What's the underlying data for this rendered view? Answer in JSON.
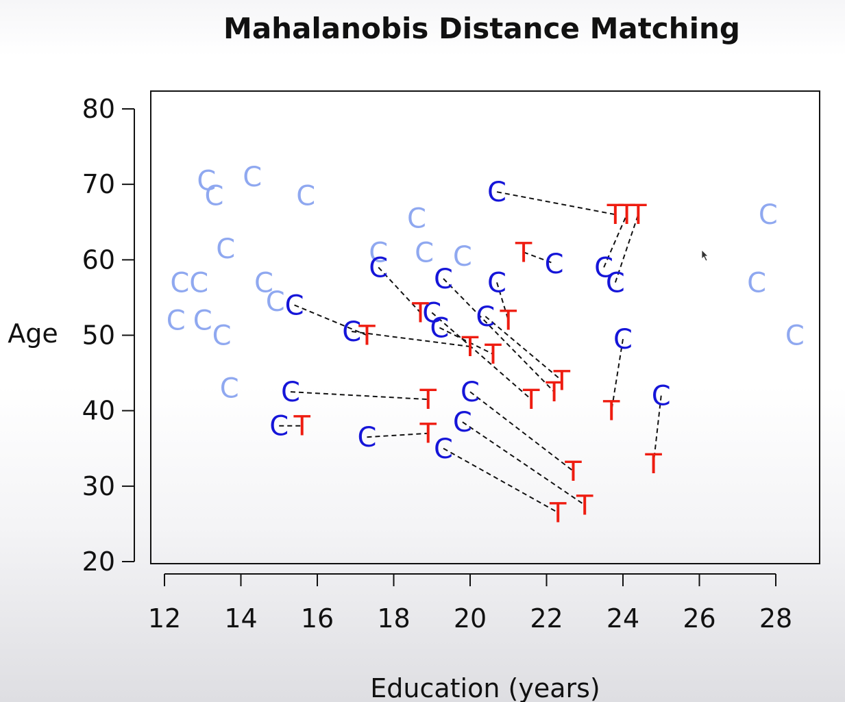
{
  "chart_data": {
    "type": "scatter",
    "title": "Mahalanobis Distance Matching",
    "xlabel": "Education (years)",
    "ylabel": "Age",
    "xlim": [
      11.8,
      29.2
    ],
    "ylim": [
      20,
      81
    ],
    "xticks": [
      12,
      14,
      16,
      18,
      20,
      22,
      24,
      26,
      28
    ],
    "yticks": [
      20,
      30,
      40,
      50,
      60,
      70,
      80
    ],
    "grid": false,
    "colors": {
      "unmatched_control": "#8fa8f0",
      "matched_control": "#1515d8",
      "treated": "#ee1c10",
      "match_line": "#111111"
    },
    "series": [
      {
        "name": "",
        "marker": "C",
        "role": "unmatched_control",
        "points": [
          [
            13.1,
            70.5
          ],
          [
            13.3,
            68.5
          ],
          [
            14.3,
            71
          ],
          [
            15.7,
            68.5
          ],
          [
            13.6,
            61.5
          ],
          [
            12.4,
            57
          ],
          [
            12.9,
            57
          ],
          [
            14.6,
            57
          ],
          [
            14.9,
            54.5
          ],
          [
            12.3,
            52
          ],
          [
            13.0,
            52
          ],
          [
            13.5,
            50
          ],
          [
            13.7,
            43
          ],
          [
            18.6,
            65.5
          ],
          [
            17.6,
            61
          ],
          [
            18.8,
            61
          ],
          [
            19.8,
            60.5
          ],
          [
            27.8,
            66
          ],
          [
            27.5,
            57
          ],
          [
            28.5,
            50
          ]
        ]
      },
      {
        "name": "",
        "marker": "C",
        "role": "matched_control",
        "points": [
          [
            20.7,
            69
          ],
          [
            22.2,
            59.5
          ],
          [
            23.5,
            59
          ],
          [
            23.8,
            57
          ],
          [
            24.0,
            49.5
          ],
          [
            25.0,
            42
          ],
          [
            20.7,
            57
          ],
          [
            19.3,
            57.5
          ],
          [
            20.4,
            52.5
          ],
          [
            19.0,
            53
          ],
          [
            19.2,
            51
          ],
          [
            17.6,
            59
          ],
          [
            15.4,
            54
          ],
          [
            16.9,
            50.5
          ],
          [
            15.3,
            42.5
          ],
          [
            15.0,
            38
          ],
          [
            17.3,
            36.5
          ],
          [
            20.0,
            42.5
          ],
          [
            19.8,
            38.5
          ],
          [
            19.3,
            35
          ]
        ]
      },
      {
        "name": "",
        "marker": "T",
        "role": "treated",
        "points": [
          [
            23.8,
            66
          ],
          [
            24.1,
            66
          ],
          [
            24.4,
            66
          ],
          [
            21.4,
            61
          ],
          [
            18.7,
            53
          ],
          [
            21.0,
            52
          ],
          [
            17.3,
            50
          ],
          [
            20.0,
            48.5
          ],
          [
            20.6,
            47.5
          ],
          [
            22.4,
            44
          ],
          [
            22.2,
            42.5
          ],
          [
            21.6,
            41.5
          ],
          [
            18.9,
            41.5
          ],
          [
            23.7,
            40
          ],
          [
            15.6,
            38
          ],
          [
            18.9,
            37
          ],
          [
            24.8,
            33
          ],
          [
            22.7,
            32
          ],
          [
            23.0,
            27.5
          ],
          [
            22.3,
            26.5
          ]
        ]
      }
    ],
    "matches": [
      [
        [
          20.7,
          69
        ],
        [
          23.8,
          66
        ]
      ],
      [
        [
          23.5,
          59
        ],
        [
          24.1,
          66
        ]
      ],
      [
        [
          23.8,
          57
        ],
        [
          24.4,
          66
        ]
      ],
      [
        [
          21.4,
          61
        ],
        [
          22.2,
          59.5
        ]
      ],
      [
        [
          24.0,
          49.5
        ],
        [
          23.7,
          40
        ]
      ],
      [
        [
          25.0,
          42
        ],
        [
          24.8,
          33
        ]
      ],
      [
        [
          20.7,
          57
        ],
        [
          21.0,
          52
        ]
      ],
      [
        [
          19.3,
          57.5
        ],
        [
          22.2,
          42.5
        ]
      ],
      [
        [
          20.4,
          52.5
        ],
        [
          22.4,
          44
        ]
      ],
      [
        [
          19.0,
          53
        ],
        [
          21.6,
          41.5
        ]
      ],
      [
        [
          19.2,
          51
        ],
        [
          20.6,
          47.5
        ]
      ],
      [
        [
          17.6,
          59
        ],
        [
          18.7,
          53
        ]
      ],
      [
        [
          15.4,
          54
        ],
        [
          17.3,
          50
        ]
      ],
      [
        [
          16.9,
          50.5
        ],
        [
          20.0,
          48.5
        ]
      ],
      [
        [
          15.3,
          42.5
        ],
        [
          18.9,
          41.5
        ]
      ],
      [
        [
          15.0,
          38
        ],
        [
          15.6,
          38
        ]
      ],
      [
        [
          17.3,
          36.5
        ],
        [
          18.9,
          37
        ]
      ],
      [
        [
          20.0,
          42.5
        ],
        [
          22.7,
          32
        ]
      ],
      [
        [
          19.8,
          38.5
        ],
        [
          23.0,
          27.5
        ]
      ],
      [
        [
          19.3,
          35
        ],
        [
          22.3,
          26.5
        ]
      ]
    ]
  }
}
